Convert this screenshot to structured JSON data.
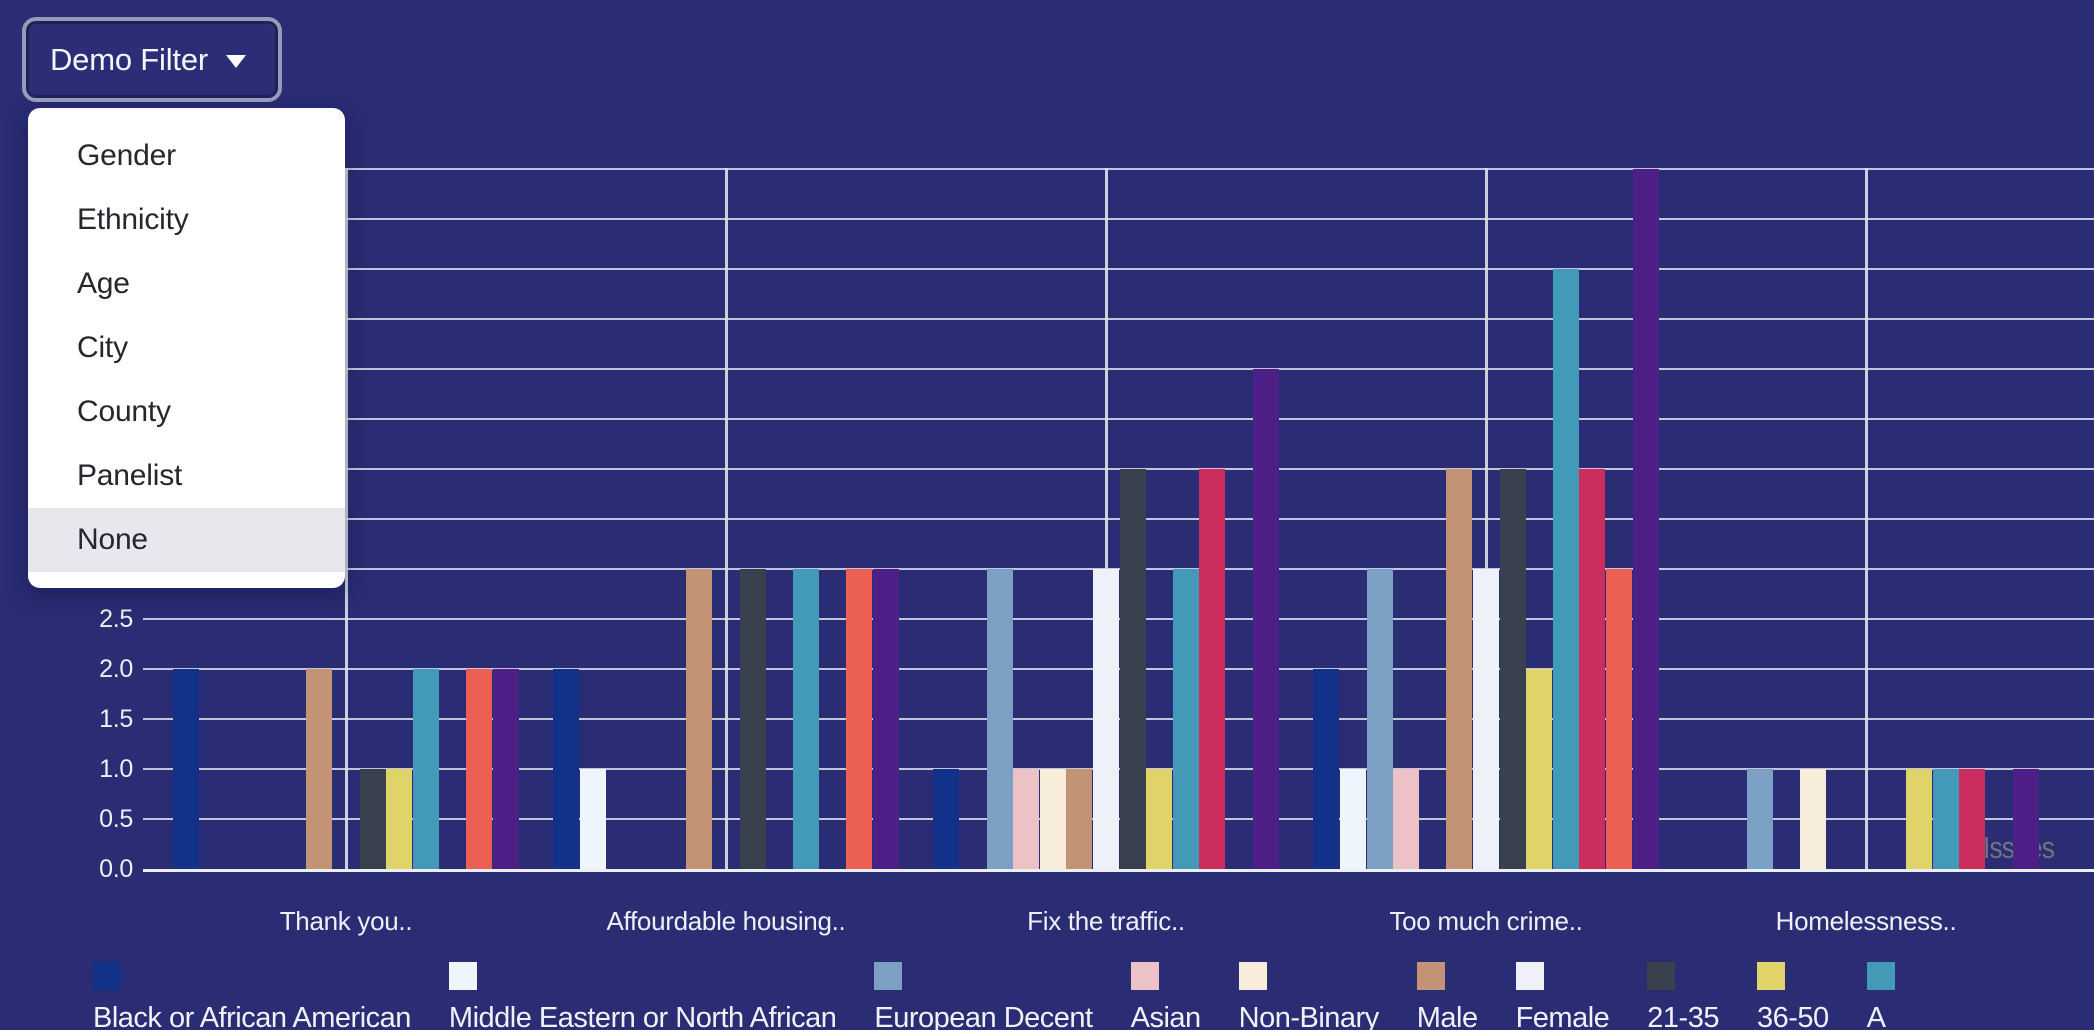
{
  "filter_button": {
    "label": "Demo Filter"
  },
  "menu": {
    "items": [
      "Gender",
      "Ethnicity",
      "Age",
      "City",
      "County",
      "Panelist",
      "None"
    ],
    "highlighted": "None"
  },
  "watermark": "Issues",
  "chart_data": {
    "type": "bar",
    "title": "",
    "categories": [
      "Thank you..",
      "Affourdable housing..",
      "Fix the traffic..",
      "Too much crime..",
      "Homelessness.."
    ],
    "series": [
      {
        "name": "Black or African American",
        "color": "#123289",
        "values": [
          2,
          2,
          1,
          2,
          0
        ]
      },
      {
        "name": "Middle Eastern or North African",
        "color": "#eff5fd",
        "values": [
          0,
          1,
          0,
          1,
          0
        ]
      },
      {
        "name": "European Decent",
        "color": "#7ba0c3",
        "values": [
          0,
          0,
          3,
          3,
          1
        ]
      },
      {
        "name": "Asian",
        "color": "#ecc2c7",
        "values": [
          0,
          0,
          1,
          1,
          0
        ]
      },
      {
        "name": "Non-Binary",
        "color": "#f8ecda",
        "values": [
          0,
          0,
          1,
          0,
          1
        ]
      },
      {
        "name": "Male",
        "color": "#c29374",
        "values": [
          2,
          3,
          1,
          4,
          0
        ]
      },
      {
        "name": "Female",
        "color": "#eef1f7",
        "values": [
          0,
          0,
          3,
          3,
          0
        ]
      },
      {
        "name": "21-35",
        "color": "#3a414e",
        "values": [
          1,
          3,
          4,
          4,
          0
        ]
      },
      {
        "name": "36-50",
        "color": "#e0d36a",
        "values": [
          1,
          0,
          1,
          2,
          1
        ]
      },
      {
        "name": "A",
        "color": "#4299b8",
        "values": [
          2,
          3,
          3,
          6,
          1
        ]
      },
      {
        "name": "",
        "color": "#cb2e5e",
        "values": [
          0,
          0,
          4,
          4,
          1
        ]
      },
      {
        "name": "",
        "color": "#ec6054",
        "values": [
          2,
          3,
          0,
          3,
          0
        ]
      },
      {
        "name": "",
        "color": "#4e1f86",
        "values": [
          2,
          3,
          5,
          7,
          1
        ]
      }
    ],
    "ylim": [
      0,
      7
    ],
    "ytick_step": 0.5,
    "visible_ytick_labels": [
      "0.0",
      "0.5",
      "1.0",
      "1.5",
      "2.0",
      "2.5"
    ],
    "grid": true,
    "legend_position": "bottom"
  },
  "colors": {
    "background": "#2a2c74",
    "gridline": "#dfe1ec",
    "axis_text": "#eef0f6",
    "menu_highlight": "#e7e8ee",
    "button_border": "#949bba",
    "watermark_text": "#73737e"
  }
}
